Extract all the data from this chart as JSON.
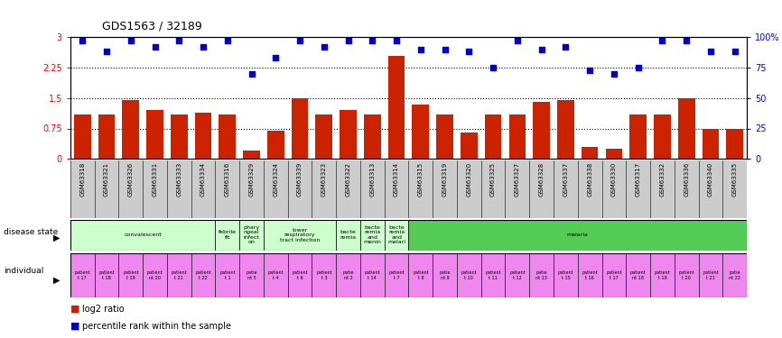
{
  "title": "GDS1563 / 32189",
  "samples": [
    "GSM63318",
    "GSM63321",
    "GSM63326",
    "GSM63331",
    "GSM63333",
    "GSM63334",
    "GSM63316",
    "GSM63329",
    "GSM63324",
    "GSM63339",
    "GSM63323",
    "GSM63322",
    "GSM63313",
    "GSM63314",
    "GSM63315",
    "GSM63319",
    "GSM63320",
    "GSM63325",
    "GSM63327",
    "GSM63328",
    "GSM63337",
    "GSM63338",
    "GSM63330",
    "GSM63317",
    "GSM63332",
    "GSM63336",
    "GSM63340",
    "GSM63335"
  ],
  "log2_ratio": [
    1.1,
    1.1,
    1.45,
    1.2,
    1.1,
    1.15,
    1.1,
    0.2,
    0.7,
    1.5,
    1.1,
    1.2,
    1.1,
    2.55,
    1.35,
    1.1,
    0.65,
    1.1,
    1.1,
    1.4,
    1.45,
    0.3,
    0.25,
    1.1,
    1.1,
    1.5,
    0.75,
    0.75
  ],
  "percentile_rank": [
    97,
    88,
    97,
    92,
    97,
    92,
    97,
    70,
    83,
    97,
    92,
    97,
    97,
    97,
    90,
    90,
    88,
    75,
    97,
    90,
    92,
    73,
    70,
    75,
    97,
    97,
    88,
    88
  ],
  "disease_groups": [
    {
      "label": "convalescent",
      "start": 0,
      "end": 5,
      "color": "#ccffcc"
    },
    {
      "label": "febrile\nfit",
      "start": 6,
      "end": 6,
      "color": "#ccffcc"
    },
    {
      "label": "phary\nngeal\ninfect\non",
      "start": 7,
      "end": 7,
      "color": "#ccffcc"
    },
    {
      "label": "lower\nrespiratory\ntract infection",
      "start": 8,
      "end": 10,
      "color": "#ccffcc"
    },
    {
      "label": "bacte\nremia",
      "start": 11,
      "end": 11,
      "color": "#ccffcc"
    },
    {
      "label": "bacte\nremia\nand\nmenin",
      "start": 12,
      "end": 12,
      "color": "#ccffcc"
    },
    {
      "label": "bacte\nremia\nand\nmalari",
      "start": 13,
      "end": 13,
      "color": "#ccffcc"
    },
    {
      "label": "malaria",
      "start": 14,
      "end": 27,
      "color": "#55cc55"
    }
  ],
  "individual_labels": [
    "patient\nt 17",
    "patient\nt 18",
    "patient\nt 19",
    "patient\nnt 20",
    "patient\nt 21",
    "patient\nt 22",
    "patient\nt 1",
    "patie\nnt 5",
    "patient\nt 4",
    "patient\nt 6",
    "patient\nt 3",
    "patie\nnt 2",
    "patient\nt 14",
    "patient\nt 7",
    "patient\nt 8",
    "patie\nnt 9",
    "patient\nt 10",
    "patient\nt 11",
    "patient\nt 12",
    "patie\nnt 13",
    "patient\nt 15",
    "patient\nt 16",
    "patient\nt 17",
    "patient\nnt 18",
    "patient\nt 19",
    "patient\nt 20",
    "patient\nt 21",
    "patie\nnt 22"
  ],
  "bar_color": "#cc2200",
  "scatter_color": "#0000cc",
  "ylim_left": [
    0,
    3
  ],
  "ylim_right": [
    0,
    100
  ],
  "yticks_left": [
    0,
    0.75,
    1.5,
    2.25,
    3
  ],
  "ytick_labels_left": [
    "0",
    "0.75",
    "1.5",
    "2.25",
    "3"
  ],
  "yticks_right": [
    0,
    25,
    50,
    75,
    100
  ],
  "ytick_labels_right": [
    "0",
    "25",
    "50",
    "75",
    "100%"
  ],
  "hlines": [
    0.75,
    1.5,
    2.25
  ],
  "figsize": [
    8.66,
    3.75
  ],
  "dpi": 100
}
